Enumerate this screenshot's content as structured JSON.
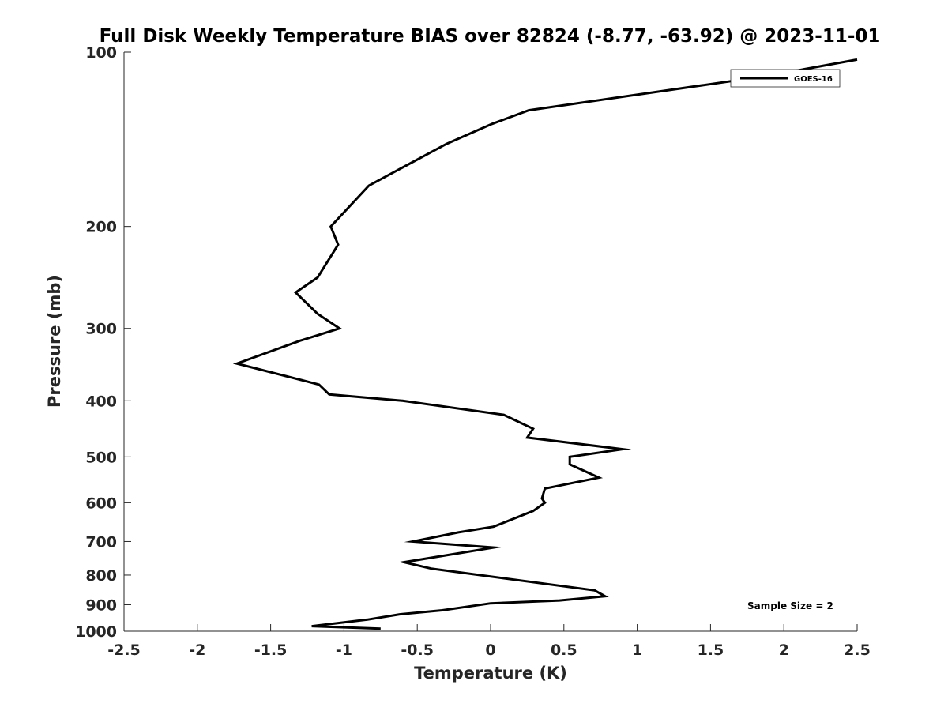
{
  "chart_data": {
    "type": "line",
    "title": "Full Disk Weekly Temperature BIAS over 82824 (-8.77, -63.92) @ 2023-11-01",
    "xlabel": "Temperature (K)",
    "ylabel": "Pressure (mb)",
    "xlim": [
      -2.5,
      2.5
    ],
    "ylim": [
      1000,
      100
    ],
    "yscale": "log",
    "y_reversed": true,
    "grid": false,
    "legend_position": "top-right",
    "x_ticks": [
      -2.5,
      -2,
      -1.5,
      -1,
      -0.5,
      0,
      0.5,
      1,
      1.5,
      2,
      2.5
    ],
    "x_tick_labels": [
      "-2.5",
      "-2",
      "-1.5",
      "-1",
      "-0.5",
      "0",
      "0.5",
      "1",
      "1.5",
      "2",
      "2.5"
    ],
    "y_ticks": [
      100,
      200,
      300,
      400,
      500,
      600,
      700,
      800,
      900,
      1000
    ],
    "y_tick_labels": [
      "100",
      "200",
      "300",
      "400",
      "500",
      "600",
      "700",
      "800",
      "900",
      "1000"
    ],
    "series": [
      {
        "name": "GOES-16",
        "color": "#000000",
        "points": [
          {
            "x": 2.5,
            "y": 103
          },
          {
            "x": 1.88,
            "y": 110
          },
          {
            "x": 0.26,
            "y": 126
          },
          {
            "x": 0.01,
            "y": 133
          },
          {
            "x": -0.3,
            "y": 144
          },
          {
            "x": -0.83,
            "y": 170
          },
          {
            "x": -1.09,
            "y": 200
          },
          {
            "x": -1.04,
            "y": 215
          },
          {
            "x": -1.18,
            "y": 245
          },
          {
            "x": -1.33,
            "y": 260
          },
          {
            "x": -1.18,
            "y": 283
          },
          {
            "x": -1.03,
            "y": 300
          },
          {
            "x": -1.3,
            "y": 315
          },
          {
            "x": -1.73,
            "y": 345
          },
          {
            "x": -1.17,
            "y": 375
          },
          {
            "x": -1.1,
            "y": 390
          },
          {
            "x": -0.6,
            "y": 400
          },
          {
            "x": 0.09,
            "y": 423
          },
          {
            "x": 0.29,
            "y": 447
          },
          {
            "x": 0.25,
            "y": 463
          },
          {
            "x": 0.9,
            "y": 485
          },
          {
            "x": 0.54,
            "y": 500
          },
          {
            "x": 0.54,
            "y": 515
          },
          {
            "x": 0.74,
            "y": 543
          },
          {
            "x": 0.37,
            "y": 567
          },
          {
            "x": 0.35,
            "y": 590
          },
          {
            "x": 0.37,
            "y": 600
          },
          {
            "x": 0.29,
            "y": 620
          },
          {
            "x": 0.02,
            "y": 660
          },
          {
            "x": -0.22,
            "y": 675
          },
          {
            "x": -0.53,
            "y": 700
          },
          {
            "x": 0.02,
            "y": 717
          },
          {
            "x": -0.59,
            "y": 760
          },
          {
            "x": -0.4,
            "y": 780
          },
          {
            "x": 0.71,
            "y": 850
          },
          {
            "x": 0.78,
            "y": 870
          },
          {
            "x": 0.47,
            "y": 885
          },
          {
            "x": 0.0,
            "y": 895
          },
          {
            "x": -0.33,
            "y": 920
          },
          {
            "x": -0.62,
            "y": 935
          },
          {
            "x": -0.84,
            "y": 955
          },
          {
            "x": -1.22,
            "y": 980
          },
          {
            "x": -0.75,
            "y": 990
          }
        ]
      }
    ],
    "annotations": [
      "Sample Size = 2"
    ]
  }
}
